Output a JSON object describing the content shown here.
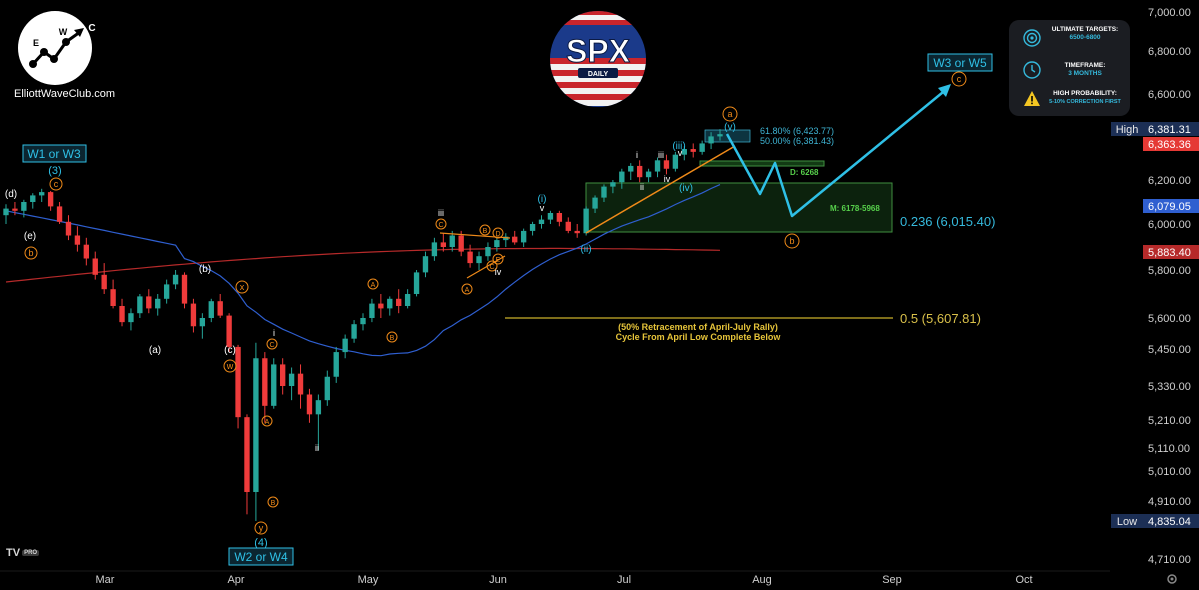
{
  "header": {
    "brand": "ElliottWaveClub.com",
    "logo_letters": [
      "E",
      "W",
      "C"
    ],
    "symbol": "SPX",
    "interval": "DAILY"
  },
  "info_panel": {
    "targets_title": "ULTIMATE TARGETS:",
    "targets_value": "6500-6800",
    "timeframe_title": "TIMEFRAME:",
    "timeframe_value": "3 MONTHS",
    "probability_title": "HIGH PROBABILITY:",
    "probability_value": "5-10% CORRECTION FIRST",
    "icons": [
      "target-icon",
      "clock-icon",
      "warning-icon"
    ]
  },
  "colors": {
    "up": "#26a69a",
    "down": "#ef3b3b",
    "ma50": "#2f5fd0",
    "ma200": "#b62a2a",
    "projection": "#2fc0e6",
    "orange": "#ef8a19",
    "fib_yellow": "#c9b02a",
    "zone_green": "#3f8f3f"
  },
  "price_axis": {
    "ticks": [
      "7,000.00",
      "6,800.00",
      "6,600.00",
      "6,200.00",
      "6,000.00",
      "5,800.00",
      "5,600.00",
      "5,450.00",
      "5,330.00",
      "5,210.00",
      "5,110.00",
      "5,010.00",
      "4,910.00",
      "4,835.00",
      "4,710.00"
    ],
    "high_label": "High",
    "high_value": "6,381.31",
    "last_value": "6,363.36",
    "ma50_value": "6,079.05",
    "ma200_value": "5,883.40",
    "low_label": "Low",
    "low_value": "4,835.04"
  },
  "time_axis": [
    "Mar",
    "Apr",
    "May",
    "Jun",
    "Jul",
    "Aug",
    "Sep",
    "Oct"
  ],
  "chart_data": {
    "type": "candlestick",
    "title": "SPX",
    "subtitle": "DAILY",
    "candles": [
      [
        6040,
        6090,
        6000,
        6070
      ],
      [
        6070,
        6100,
        6040,
        6060
      ],
      [
        6060,
        6110,
        6030,
        6100
      ],
      [
        6100,
        6140,
        6070,
        6130
      ],
      [
        6130,
        6160,
        6100,
        6145
      ],
      [
        6145,
        6150,
        6060,
        6080
      ],
      [
        6080,
        6100,
        6000,
        6010
      ],
      [
        6010,
        6040,
        5930,
        5950
      ],
      [
        5950,
        5990,
        5880,
        5910
      ],
      [
        5910,
        5940,
        5820,
        5850
      ],
      [
        5850,
        5880,
        5760,
        5780
      ],
      [
        5780,
        5830,
        5700,
        5720
      ],
      [
        5720,
        5760,
        5640,
        5650
      ],
      [
        5650,
        5680,
        5560,
        5580
      ],
      [
        5580,
        5640,
        5540,
        5620
      ],
      [
        5620,
        5700,
        5600,
        5690
      ],
      [
        5690,
        5720,
        5620,
        5640
      ],
      [
        5640,
        5700,
        5610,
        5680
      ],
      [
        5680,
        5760,
        5660,
        5740
      ],
      [
        5740,
        5800,
        5720,
        5780
      ],
      [
        5780,
        5790,
        5640,
        5660
      ],
      [
        5660,
        5680,
        5530,
        5560
      ],
      [
        5560,
        5620,
        5500,
        5600
      ],
      [
        5600,
        5680,
        5580,
        5670
      ],
      [
        5670,
        5700,
        5600,
        5610
      ],
      [
        5610,
        5620,
        5440,
        5460
      ],
      [
        5460,
        5470,
        5180,
        5220
      ],
      [
        5220,
        5230,
        4860,
        4940
      ],
      [
        4940,
        5480,
        4835,
        5420
      ],
      [
        5420,
        5440,
        5200,
        5260
      ],
      [
        5260,
        5420,
        5250,
        5400
      ],
      [
        5400,
        5420,
        5300,
        5330
      ],
      [
        5330,
        5390,
        5280,
        5370
      ],
      [
        5370,
        5400,
        5250,
        5300
      ],
      [
        5300,
        5320,
        5200,
        5230
      ],
      [
        5230,
        5300,
        5100,
        5280
      ],
      [
        5280,
        5380,
        5260,
        5360
      ],
      [
        5360,
        5460,
        5340,
        5440
      ],
      [
        5440,
        5520,
        5420,
        5500
      ],
      [
        5500,
        5590,
        5480,
        5570
      ],
      [
        5570,
        5620,
        5540,
        5600
      ],
      [
        5600,
        5680,
        5580,
        5660
      ],
      [
        5660,
        5700,
        5600,
        5640
      ],
      [
        5640,
        5690,
        5610,
        5680
      ],
      [
        5680,
        5720,
        5620,
        5650
      ],
      [
        5650,
        5720,
        5640,
        5700
      ],
      [
        5700,
        5800,
        5690,
        5790
      ],
      [
        5790,
        5880,
        5770,
        5860
      ],
      [
        5860,
        5940,
        5840,
        5920
      ],
      [
        5920,
        5960,
        5880,
        5900
      ],
      [
        5900,
        5970,
        5880,
        5950
      ],
      [
        5950,
        5970,
        5860,
        5880
      ],
      [
        5880,
        5910,
        5810,
        5830
      ],
      [
        5830,
        5880,
        5800,
        5860
      ],
      [
        5860,
        5920,
        5840,
        5900
      ],
      [
        5900,
        5940,
        5880,
        5930
      ],
      [
        5930,
        5960,
        5900,
        5945
      ],
      [
        5945,
        5970,
        5910,
        5920
      ],
      [
        5920,
        5980,
        5900,
        5970
      ],
      [
        5970,
        6010,
        5950,
        6000
      ],
      [
        6000,
        6040,
        5980,
        6020
      ],
      [
        6020,
        6060,
        6000,
        6050
      ],
      [
        6050,
        6060,
        5990,
        6010
      ],
      [
        6010,
        6030,
        5960,
        5970
      ],
      [
        5970,
        6000,
        5940,
        5960
      ],
      [
        5960,
        6080,
        5950,
        6070
      ],
      [
        6070,
        6130,
        6050,
        6120
      ],
      [
        6120,
        6180,
        6100,
        6170
      ],
      [
        6170,
        6200,
        6140,
        6190
      ],
      [
        6190,
        6240,
        6160,
        6230
      ],
      [
        6230,
        6260,
        6200,
        6250
      ],
      [
        6250,
        6270,
        6190,
        6210
      ],
      [
        6210,
        6240,
        6190,
        6230
      ],
      [
        6230,
        6280,
        6210,
        6270
      ],
      [
        6270,
        6290,
        6220,
        6240
      ],
      [
        6240,
        6300,
        6230,
        6290
      ],
      [
        6290,
        6320,
        6270,
        6310
      ],
      [
        6310,
        6330,
        6280,
        6300
      ],
      [
        6300,
        6340,
        6290,
        6330
      ],
      [
        6330,
        6370,
        6310,
        6355
      ],
      [
        6355,
        6381,
        6340,
        6363
      ]
    ],
    "moving_averages": [
      {
        "name": "50",
        "last": 6079.05
      },
      {
        "name": "200",
        "last": 5883.4
      }
    ],
    "fib_levels": [
      {
        "label": "0.236 (6,015.40)",
        "value": 6015.4
      },
      {
        "label": "0.5 (5,607.81)",
        "value": 5607.81
      },
      {
        "label": "61.80% (6,423.77)",
        "value": 6423.77
      },
      {
        "label": "50.00% (6,381.43)",
        "value": 6381.43
      }
    ],
    "zones": [
      {
        "label": "D: 6268",
        "value": 6268
      },
      {
        "label": "M: 6178-5968",
        "low": 5968,
        "high": 6178
      }
    ],
    "projection_targets": [
      6660,
      6170,
      6220,
      6040
    ],
    "wave_labels": {
      "w1w3": "W1 or W3",
      "w2w4": "W2 or W4",
      "w3w5": "W3 or W5",
      "three": "(3)",
      "four": "(4)",
      "d": "(d)",
      "e": "(e)",
      "a": "(a)",
      "b": "(b)",
      "c": "(c)",
      "i_blue": "(i)",
      "ii_blue": "(ii)",
      "iii_blue": "(iii)",
      "iv_blue": "(iv)",
      "v_blue": "(v)",
      "i": "i",
      "ii": "ii",
      "iii": "iii",
      "iv": "iv",
      "v": "v",
      "circ_c": "c",
      "circ_b": "b",
      "circ_a": "a",
      "circ_x": "x",
      "circ_w": "w",
      "circ_y": "y",
      "circ_A": "A",
      "circ_B": "B",
      "circ_C": "C",
      "circ_D": "D",
      "circ_E": "E"
    },
    "notes": {
      "retrace_line1": "(50% Retracement of April-July Rally)",
      "retrace_line2": "Cycle From April Low Complete Below"
    }
  },
  "footer": {
    "platform": "TV",
    "badge": "PRO"
  }
}
